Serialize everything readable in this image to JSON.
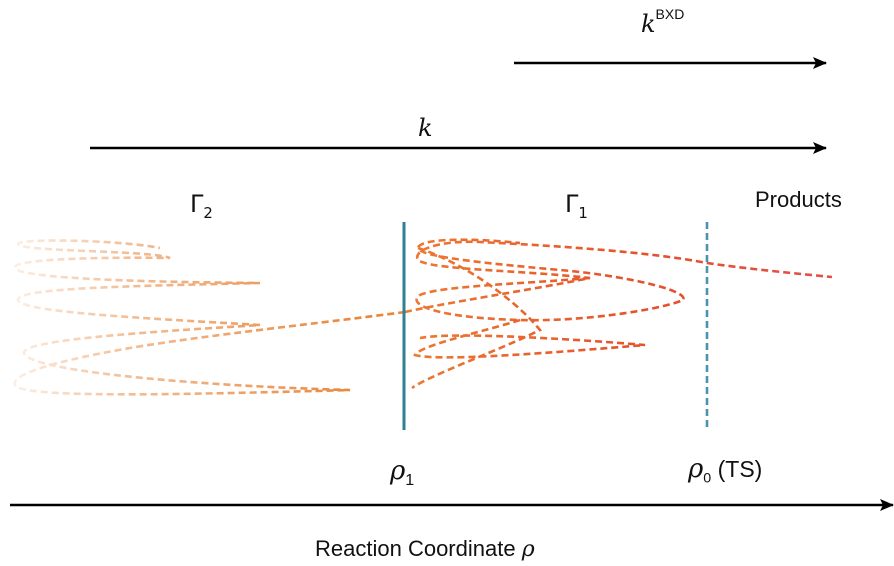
{
  "labels": {
    "k_bxd_base": "k",
    "k_bxd_sup": "BXD",
    "k": "k",
    "gamma2_base": "Γ",
    "gamma2_sub": "2",
    "gamma1_base": "Γ",
    "gamma1_sub": "1",
    "products": "Products",
    "rho1_base": "ρ",
    "rho1_sub": "1",
    "rho0_base": "ρ",
    "rho0_sub": "0",
    "rho0_suffix": "(TS)",
    "axis_label": "Reaction Coordinate",
    "axis_symbol": "ρ"
  },
  "colors": {
    "arrow": "#000000",
    "divider_rho1": "#2f7f96",
    "divider_rho0": "#4a94ad",
    "traj_gamma2": "#e8863a",
    "traj_gamma1": "#e8642a",
    "traj_red": "#e0392a"
  }
}
